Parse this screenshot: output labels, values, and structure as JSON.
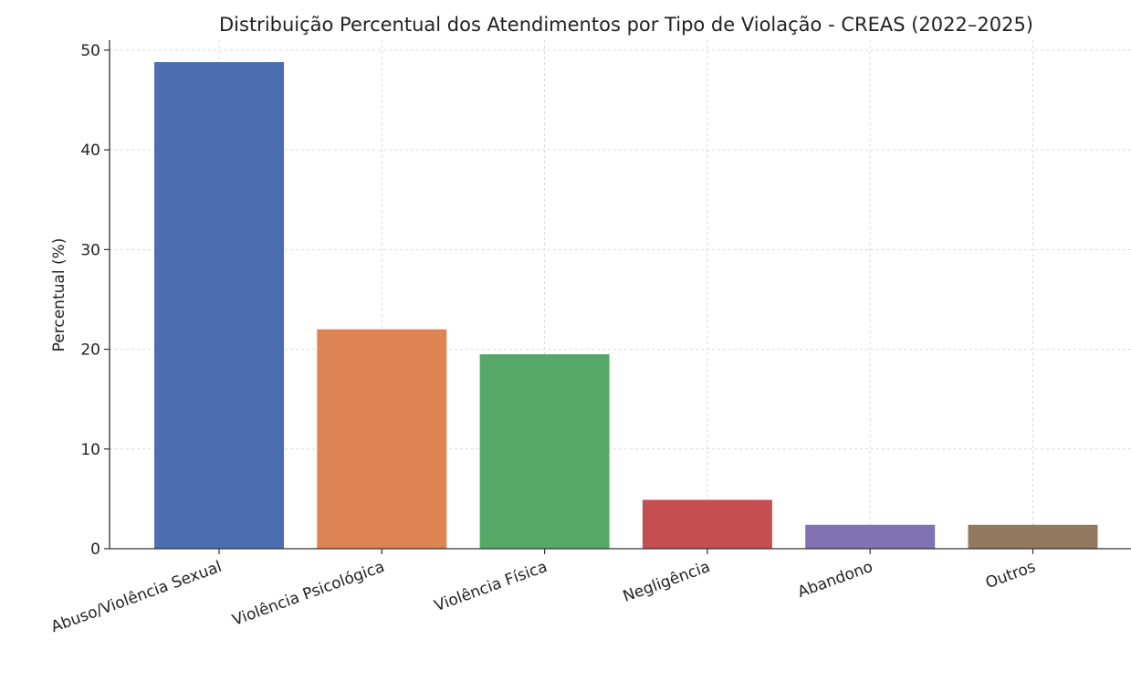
{
  "chart_data": {
    "type": "bar",
    "title": "Distribuição Percentual dos Atendimentos por Tipo de Violação - CREAS (2022–2025)",
    "xlabel": "",
    "ylabel": "Percentual (%)",
    "ylim": [
      0,
      51
    ],
    "yticks": [
      0,
      10,
      20,
      30,
      40,
      50
    ],
    "grid": true,
    "categories": [
      "Abuso/Violência Sexual",
      "Violência Psicológica",
      "Violência Física",
      "Negligência",
      "Abandono",
      "Outros"
    ],
    "values": [
      48.8,
      22.0,
      19.5,
      4.9,
      2.4,
      2.4
    ],
    "colors": [
      "#4a6eaf",
      "#dd8452",
      "#55a868",
      "#c44e52",
      "#8172b3",
      "#937860"
    ]
  }
}
